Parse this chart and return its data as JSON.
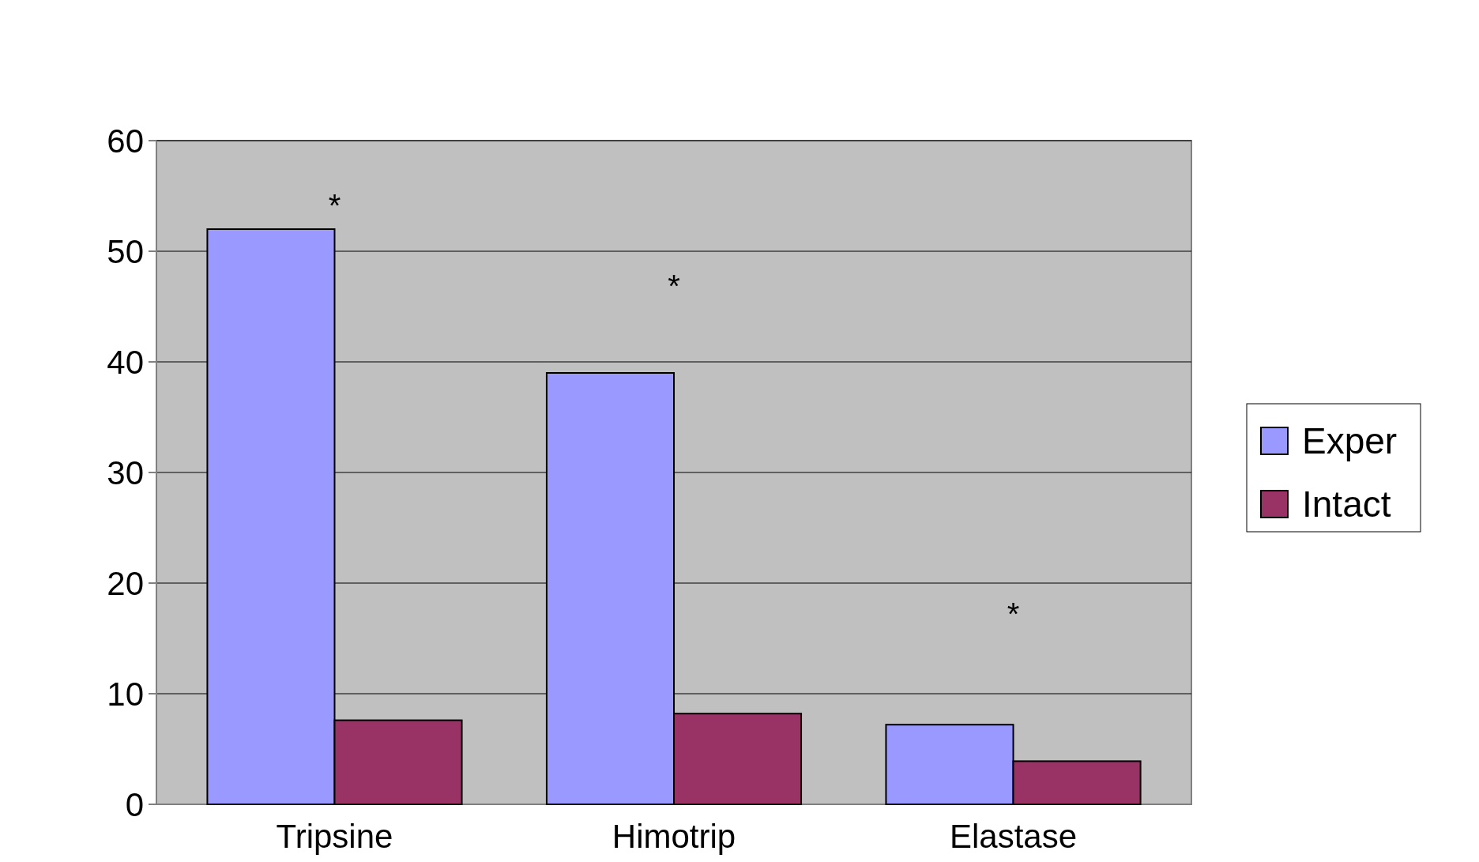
{
  "chart_data": {
    "type": "bar",
    "categories": [
      "Tripsine",
      "Himotrip",
      "Elastase"
    ],
    "series": [
      {
        "name": "Exper",
        "color": "#9999ff",
        "values": [
          52,
          39,
          7.2
        ]
      },
      {
        "name": "Intact",
        "color": "#993366",
        "values": [
          7.6,
          8.2,
          3.9
        ]
      }
    ],
    "ylim": [
      0,
      60
    ],
    "yticks": [
      0,
      10,
      20,
      30,
      40,
      50,
      60
    ],
    "grid": "y",
    "legend": "right",
    "annotations": [
      "*",
      "*",
      "*"
    ]
  }
}
